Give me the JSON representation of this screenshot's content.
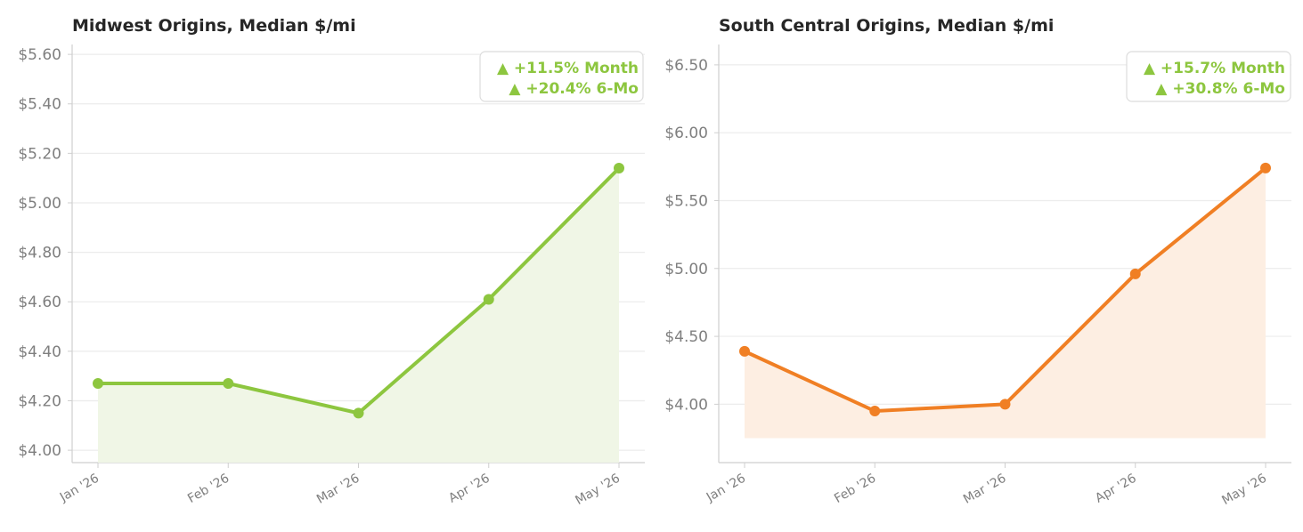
{
  "chart_data": [
    {
      "type": "area",
      "title": "Midwest Origins, Median $/mi",
      "xlabel": "",
      "ylabel": "",
      "categories": [
        "Jan '26",
        "Feb '26",
        "Mar '26",
        "Apr '26",
        "May '26"
      ],
      "values": [
        4.27,
        4.27,
        4.15,
        4.61,
        5.14
      ],
      "ylim": [
        3.95,
        5.64
      ],
      "fill_base": 3.95,
      "yticks": [
        4.0,
        4.2,
        4.4,
        4.6,
        4.8,
        5.0,
        5.2,
        5.4,
        5.6
      ],
      "ytick_labels": [
        "$4.00",
        "$4.20",
        "$4.40",
        "$4.60",
        "$4.80",
        "$5.00",
        "$5.20",
        "$5.40",
        "$5.60"
      ],
      "color": "#8dc63f",
      "fill_color": "#f0f6e6",
      "grid": true,
      "legend_placement": "top-right",
      "annotations": [
        "▲  +11.5% Month",
        "▲  +20.4% 6-Mo"
      ],
      "annotation_color": "#8dc63f"
    },
    {
      "type": "area",
      "title": "South Central Origins, Median $/mi",
      "xlabel": "",
      "ylabel": "",
      "categories": [
        "Jan '26",
        "Feb '26",
        "Mar '26",
        "Apr '26",
        "May '26"
      ],
      "values": [
        4.39,
        3.95,
        4.0,
        4.96,
        5.74
      ],
      "ylim": [
        3.57,
        6.65
      ],
      "fill_base": 3.75,
      "yticks": [
        4.0,
        4.5,
        5.0,
        5.5,
        6.0,
        6.5
      ],
      "ytick_labels": [
        "$4.00",
        "$4.50",
        "$5.00",
        "$5.50",
        "$6.00",
        "$6.50"
      ],
      "color": "#f07f24",
      "fill_color": "#fdeee2",
      "grid": true,
      "legend_placement": "top-right",
      "annotations": [
        "▲  +15.7% Month",
        "▲  +30.8% 6-Mo"
      ],
      "annotation_color": "#8dc63f"
    }
  ]
}
